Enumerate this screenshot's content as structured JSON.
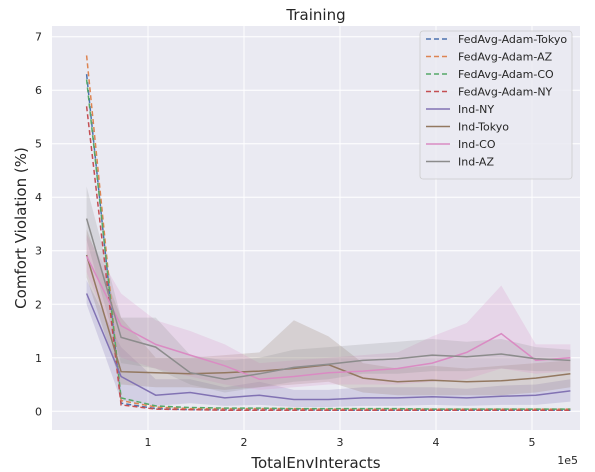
{
  "chart_data": {
    "type": "line",
    "title": "Training",
    "xlabel": "TotalEnvInteracts",
    "ylabel": "Comfort Violation (%)",
    "x_offset_label": "1e5",
    "xlim": [
      0.0,
      5.5
    ],
    "ylim": [
      -0.35,
      7.2
    ],
    "x_ticks": [
      1,
      2,
      3,
      4,
      5
    ],
    "y_ticks": [
      0,
      1,
      2,
      3,
      4,
      5,
      6,
      7
    ],
    "grid": true,
    "legend_position": "top-right",
    "x": [
      0.36,
      0.72,
      1.08,
      1.44,
      1.8,
      2.16,
      2.52,
      2.88,
      3.24,
      3.6,
      3.96,
      4.32,
      4.68,
      5.04,
      5.4
    ],
    "series": [
      {
        "name": "FedAvg-Adam-Tokyo",
        "color": "#4c72b0",
        "dash": true,
        "values": [
          6.3,
          0.15,
          0.05,
          0.03,
          0.03,
          0.03,
          0.03,
          0.02,
          0.02,
          0.02,
          0.02,
          0.02,
          0.02,
          0.02,
          0.02
        ]
      },
      {
        "name": "FedAvg-Adam-AZ",
        "color": "#dd8452",
        "dash": true,
        "values": [
          6.65,
          0.2,
          0.08,
          0.05,
          0.05,
          0.05,
          0.05,
          0.04,
          0.04,
          0.04,
          0.04,
          0.04,
          0.04,
          0.04,
          0.04
        ]
      },
      {
        "name": "FedAvg-Adam-CO",
        "color": "#55a868",
        "dash": true,
        "values": [
          6.2,
          0.25,
          0.1,
          0.07,
          0.06,
          0.06,
          0.05,
          0.05,
          0.05,
          0.05,
          0.04,
          0.04,
          0.04,
          0.04,
          0.04
        ]
      },
      {
        "name": "FedAvg-Adam-NY",
        "color": "#c44e52",
        "dash": true,
        "values": [
          5.7,
          0.12,
          0.04,
          0.03,
          0.02,
          0.02,
          0.02,
          0.02,
          0.02,
          0.02,
          0.02,
          0.02,
          0.02,
          0.02,
          0.02
        ]
      },
      {
        "name": "Ind-NY",
        "color": "#8172b3",
        "dash": false,
        "values": [
          2.2,
          0.65,
          0.3,
          0.35,
          0.25,
          0.3,
          0.22,
          0.22,
          0.25,
          0.25,
          0.27,
          0.25,
          0.28,
          0.3,
          0.38
        ]
      },
      {
        "name": "Ind-Tokyo",
        "color": "#937860",
        "dash": false,
        "values": [
          2.92,
          0.74,
          0.72,
          0.7,
          0.72,
          0.75,
          0.8,
          0.87,
          0.62,
          0.55,
          0.58,
          0.55,
          0.57,
          0.62,
          0.7
        ]
      },
      {
        "name": "Ind-CO",
        "color": "#da8bc3",
        "dash": false,
        "values": [
          2.9,
          1.6,
          1.25,
          1.05,
          0.85,
          0.6,
          0.65,
          0.72,
          0.75,
          0.8,
          0.9,
          1.1,
          1.45,
          0.95,
          1.0
        ]
      },
      {
        "name": "Ind-AZ",
        "color": "#8c8c8c",
        "dash": false,
        "values": [
          3.6,
          1.38,
          1.2,
          0.72,
          0.6,
          0.7,
          0.82,
          0.88,
          0.95,
          0.98,
          1.05,
          1.02,
          1.07,
          0.98,
          0.95
        ]
      }
    ],
    "bands": [
      {
        "series": "Ind-NY",
        "lower": [
          2.0,
          0.2,
          0.1,
          0.15,
          0.1,
          0.12,
          0.08,
          0.08,
          0.1,
          0.1,
          0.12,
          0.1,
          0.12,
          0.12,
          0.18
        ],
        "upper": [
          2.45,
          1.2,
          0.6,
          0.6,
          0.45,
          0.55,
          0.4,
          0.4,
          0.45,
          0.45,
          0.45,
          0.42,
          0.48,
          0.5,
          0.6
        ]
      },
      {
        "series": "Ind-Tokyo",
        "lower": [
          2.5,
          0.5,
          0.45,
          0.45,
          0.4,
          0.45,
          0.5,
          0.55,
          0.35,
          0.3,
          0.3,
          0.3,
          0.3,
          0.35,
          0.45
        ],
        "upper": [
          3.4,
          1.75,
          1.0,
          1.0,
          1.05,
          1.1,
          1.7,
          1.4,
          0.9,
          0.8,
          0.85,
          0.8,
          0.85,
          0.9,
          0.95
        ]
      },
      {
        "series": "Ind-CO",
        "lower": [
          2.6,
          1.0,
          0.8,
          0.65,
          0.5,
          0.4,
          0.45,
          0.5,
          0.5,
          0.5,
          0.55,
          0.6,
          0.8,
          0.7,
          0.75
        ],
        "upper": [
          3.3,
          2.2,
          1.7,
          1.5,
          1.25,
          0.9,
          0.95,
          1.0,
          1.05,
          1.1,
          1.4,
          1.65,
          2.35,
          1.25,
          1.25
        ]
      },
      {
        "series": "Ind-AZ",
        "lower": [
          3.2,
          0.9,
          0.8,
          0.5,
          0.35,
          0.45,
          0.55,
          0.6,
          0.7,
          0.7,
          0.75,
          0.75,
          0.8,
          0.75,
          0.75
        ],
        "upper": [
          4.2,
          1.75,
          1.75,
          1.05,
          0.95,
          1.0,
          1.15,
          1.2,
          1.25,
          1.3,
          1.35,
          1.3,
          1.35,
          1.2,
          1.15
        ]
      }
    ]
  }
}
